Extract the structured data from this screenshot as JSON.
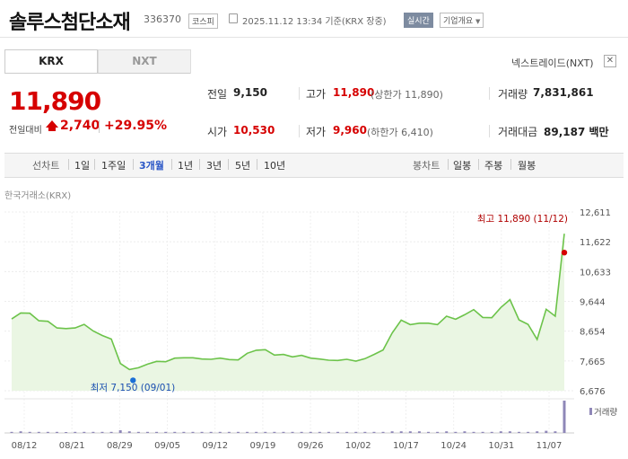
{
  "header": {
    "name": "솔루스첨단소재",
    "code": "336370",
    "market": "코스피",
    "datetime": "2025.11.12 13:34 기준(KRX 장중)",
    "realtime": "실시간",
    "profile": "기업개요"
  },
  "tabs": {
    "krx": "KRX",
    "nxt": "NXT"
  },
  "nxt_link": "넥스트레이드(NXT)",
  "quote": {
    "price": "11,890",
    "change_label": "전일대비",
    "change": "2,740",
    "change_pct": "+29.95%"
  },
  "stats": {
    "prev_label": "전일",
    "prev": "9,150",
    "high_label": "고가",
    "high": "11,890",
    "high_sub": "(상한가 11,890)",
    "volume_label": "거래량",
    "volume": "7,831,861",
    "open_label": "시가",
    "open": "10,530",
    "low_label": "저가",
    "low": "9,960",
    "low_sub": "(하한가 6,410)",
    "amount_label": "거래대금",
    "amount": "89,187 백만"
  },
  "toolbar": {
    "line_label": "선차트",
    "periods": [
      "1일",
      "1주일",
      "3개월",
      "1년",
      "3년",
      "5년",
      "10년"
    ],
    "selected": "3개월",
    "candle_label": "봉차트",
    "candles": [
      "일봉",
      "주봉",
      "월봉"
    ]
  },
  "source": "한국거래소(KRX)",
  "colors": {
    "up": "#d60000",
    "line": "#6cc34a",
    "fill": "#eaf6e3",
    "volume": "#8f87b8",
    "selected": "#2a56c6"
  },
  "chart_data": {
    "type": "area",
    "y_ticks": [
      "12,611",
      "11,622",
      "10,633",
      "9,644",
      "8,654",
      "7,665",
      "6,676"
    ],
    "ylim": [
      6676,
      12611
    ],
    "x_ticks": [
      "08/12",
      "08/21",
      "08/29",
      "09/05",
      "09/12",
      "09/19",
      "09/26",
      "10/02",
      "10/17",
      "10/24",
      "10/31",
      "11/07"
    ],
    "annotations": {
      "high": "최고 11,890 (11/12)",
      "low": "최저 7,150 (09/01)"
    },
    "volume_label": "거래량",
    "series": [
      {
        "values": [
          9060,
          9260,
          9250,
          9000,
          8980,
          8760,
          8740,
          8760,
          8880,
          8660,
          8510,
          8390,
          7580,
          7380,
          7440,
          7560,
          7650,
          7640,
          7760,
          7770,
          7770,
          7730,
          7720,
          7760,
          7710,
          7700,
          7920,
          8020,
          8040,
          7860,
          7880,
          7800,
          7850,
          7760,
          7730,
          7690,
          7680,
          7720,
          7660,
          7740,
          7880,
          8030,
          8590,
          9020,
          8870,
          8920,
          8920,
          8870,
          9150,
          9050,
          9200,
          9370,
          9110,
          9100,
          9440,
          9700,
          9030,
          8880,
          8380,
          9380,
          9150,
          11890
        ]
      }
    ],
    "volume": [
      2,
      3,
      2,
      2,
      2,
      2,
      1,
      2,
      2,
      2,
      2,
      2,
      5,
      3,
      2,
      2,
      2,
      2,
      2,
      2,
      2,
      2,
      2,
      2,
      2,
      2,
      2,
      2,
      2,
      2,
      2,
      2,
      2,
      2,
      2,
      2,
      2,
      2,
      2,
      2,
      2,
      2,
      3,
      3,
      3,
      3,
      2,
      2,
      3,
      2,
      3,
      2,
      2,
      2,
      3,
      3,
      2,
      2,
      3,
      4,
      3,
      60
    ]
  }
}
